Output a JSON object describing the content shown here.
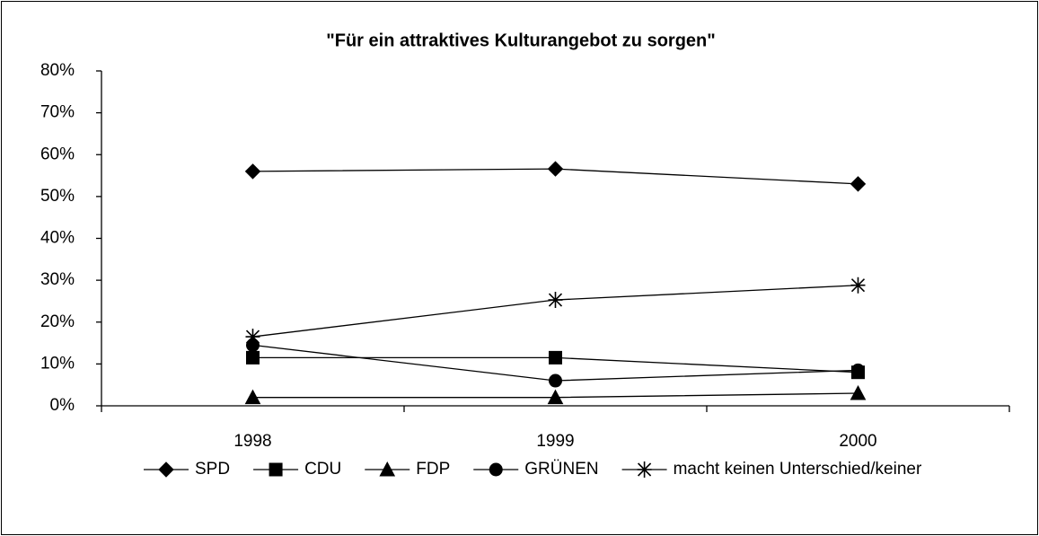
{
  "chart_data": {
    "type": "line",
    "title": "\"Für ein attraktives Kulturangebot zu sorgen\"",
    "categories": [
      "1998",
      "1999",
      "2000"
    ],
    "series": [
      {
        "name": "SPD",
        "color": "#000000",
        "marker": "diamond",
        "values": [
          56,
          56.6,
          53
        ]
      },
      {
        "name": "CDU",
        "color": "#000000",
        "marker": "square",
        "values": [
          11.5,
          11.5,
          8
        ]
      },
      {
        "name": "FDP",
        "color": "#000000",
        "marker": "triangle",
        "values": [
          2,
          2,
          3
        ]
      },
      {
        "name": "GRÜNEN",
        "color": "#000000",
        "marker": "circle",
        "values": [
          14.5,
          6,
          8.5
        ]
      },
      {
        "name": "macht keinen Unterschied/keiner",
        "color": "#000000",
        "marker": "asterisk",
        "values": [
          16.5,
          25.3,
          28.8
        ]
      }
    ],
    "ylim": [
      0,
      80
    ],
    "yticks": [
      {
        "value": 0,
        "label": "0%"
      },
      {
        "value": 10,
        "label": "10%"
      },
      {
        "value": 20,
        "label": "20%"
      },
      {
        "value": 30,
        "label": "30%"
      },
      {
        "value": 40,
        "label": "40%"
      },
      {
        "value": 50,
        "label": "50%"
      },
      {
        "value": 60,
        "label": "60%"
      },
      {
        "value": 70,
        "label": "70%"
      },
      {
        "value": 80,
        "label": "80%"
      }
    ],
    "grid": false,
    "legend": "bottom"
  }
}
